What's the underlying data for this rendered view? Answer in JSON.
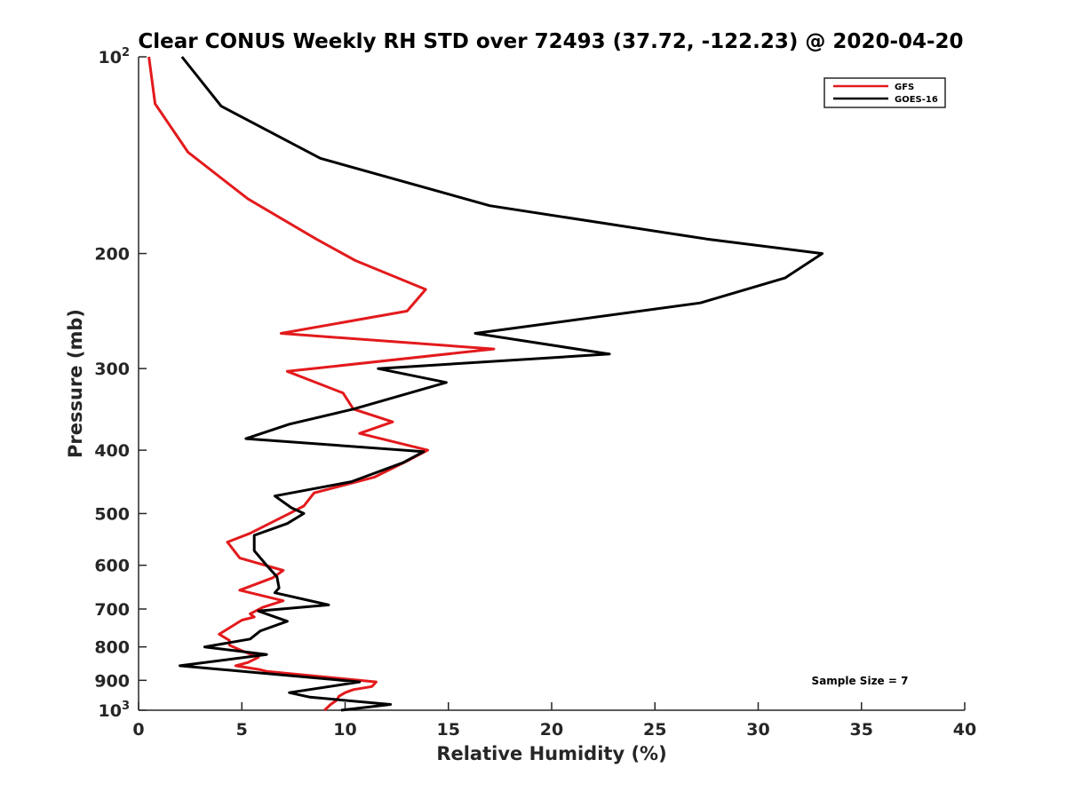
{
  "chart_data": {
    "type": "line",
    "title": "Clear CONUS Weekly RH STD over 72493 (37.72, -122.23) @ 2020-04-20",
    "xlabel": "Relative Humidity (%)",
    "ylabel": "Pressure (mb)",
    "xlim": [
      0,
      40
    ],
    "ylim": [
      100,
      1000
    ],
    "y_scale": "log",
    "y_reversed": true,
    "grid": false,
    "legend_position": "top-right",
    "x_ticks": [
      0,
      5,
      10,
      15,
      20,
      25,
      30,
      35,
      40
    ],
    "x_tick_labels": [
      "0",
      "5",
      "10",
      "15",
      "20",
      "25",
      "30",
      "35",
      "40"
    ],
    "y_ticks": [
      100,
      200,
      300,
      400,
      500,
      600,
      700,
      800,
      900,
      1000
    ],
    "y_tick_labels": [
      {
        "value": 100,
        "base": "10",
        "exp": "2"
      },
      {
        "value": 200,
        "base": "200",
        "exp": ""
      },
      {
        "value": 300,
        "base": "300",
        "exp": ""
      },
      {
        "value": 400,
        "base": "400",
        "exp": ""
      },
      {
        "value": 500,
        "base": "500",
        "exp": ""
      },
      {
        "value": 600,
        "base": "600",
        "exp": ""
      },
      {
        "value": 700,
        "base": "700",
        "exp": ""
      },
      {
        "value": 800,
        "base": "800",
        "exp": ""
      },
      {
        "value": 900,
        "base": "900",
        "exp": ""
      },
      {
        "value": 1000,
        "base": "10",
        "exp": "3"
      }
    ],
    "annotation": "Sample Size = 7",
    "series": [
      {
        "name": "GFS",
        "color": "#e31a1c",
        "points": [
          [
            0.5,
            100
          ],
          [
            0.8,
            118
          ],
          [
            2.4,
            140
          ],
          [
            5.3,
            165
          ],
          [
            8.6,
            190
          ],
          [
            10.5,
            205
          ],
          [
            13.9,
            227
          ],
          [
            13.0,
            245
          ],
          [
            6.9,
            265
          ],
          [
            17.2,
            280
          ],
          [
            7.2,
            303
          ],
          [
            9.9,
            327
          ],
          [
            10.4,
            346
          ],
          [
            12.3,
            362
          ],
          [
            10.7,
            377
          ],
          [
            14.0,
            400
          ],
          [
            13.1,
            414
          ],
          [
            11.4,
            440
          ],
          [
            8.5,
            465
          ],
          [
            8.0,
            487
          ],
          [
            7.3,
            500
          ],
          [
            5.4,
            536
          ],
          [
            4.3,
            553
          ],
          [
            4.9,
            585
          ],
          [
            7.0,
            611
          ],
          [
            6.5,
            627
          ],
          [
            4.9,
            655
          ],
          [
            7.0,
            680
          ],
          [
            6.0,
            696
          ],
          [
            5.4,
            712
          ],
          [
            5.6,
            720
          ],
          [
            5.0,
            728
          ],
          [
            3.9,
            765
          ],
          [
            4.4,
            782
          ],
          [
            4.4,
            795
          ],
          [
            5.0,
            811
          ],
          [
            5.8,
            830
          ],
          [
            5.3,
            845
          ],
          [
            4.7,
            855
          ],
          [
            5.9,
            867
          ],
          [
            6.2,
            872
          ],
          [
            11.5,
            905
          ],
          [
            11.3,
            920
          ],
          [
            10.4,
            930
          ],
          [
            10.0,
            940
          ],
          [
            9.7,
            952
          ],
          [
            9.6,
            965
          ],
          [
            9.3,
            980
          ],
          [
            9.0,
            1000
          ]
        ]
      },
      {
        "name": "GOES-16",
        "color": "#000000",
        "points": [
          [
            2.1,
            100
          ],
          [
            4.0,
            119
          ],
          [
            8.8,
            143
          ],
          [
            17.0,
            169
          ],
          [
            27.5,
            190
          ],
          [
            33.1,
            200
          ],
          [
            31.3,
            218
          ],
          [
            27.2,
            238
          ],
          [
            16.3,
            265
          ],
          [
            22.8,
            285
          ],
          [
            11.6,
            300
          ],
          [
            14.9,
            315
          ],
          [
            10.4,
            346
          ],
          [
            7.3,
            365
          ],
          [
            5.2,
            384
          ],
          [
            13.8,
            402
          ],
          [
            12.8,
            418
          ],
          [
            10.3,
            447
          ],
          [
            6.6,
            470
          ],
          [
            7.4,
            490
          ],
          [
            8.0,
            500
          ],
          [
            7.2,
            518
          ],
          [
            5.6,
            540
          ],
          [
            5.6,
            570
          ],
          [
            6.2,
            600
          ],
          [
            6.7,
            625
          ],
          [
            6.8,
            650
          ],
          [
            6.6,
            661
          ],
          [
            9.2,
            690
          ],
          [
            5.8,
            705
          ],
          [
            7.2,
            731
          ],
          [
            5.9,
            756
          ],
          [
            5.4,
            778
          ],
          [
            3.2,
            800
          ],
          [
            6.2,
            822
          ],
          [
            2.0,
            855
          ],
          [
            10.7,
            905
          ],
          [
            7.3,
            940
          ],
          [
            8.3,
            955
          ],
          [
            12.2,
            980
          ],
          [
            9.8,
            1000
          ]
        ]
      }
    ]
  }
}
